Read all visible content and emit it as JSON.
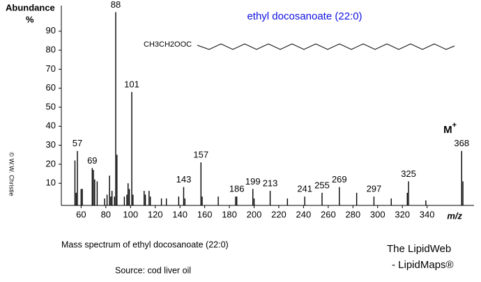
{
  "chart_data": {
    "type": "stick",
    "title": "ethyl docosanoate  (22:0)",
    "structure_label": "CH3CH2OOC",
    "y_label": "Abundance",
    "y_unit": "%",
    "x_label": "m/z",
    "molecular_ion": {
      "text": "M",
      "sup": "+"
    },
    "copyright": "© W.W. Christie",
    "color": "#000000",
    "x": [
      55,
      56,
      57,
      60,
      61,
      69,
      70,
      71,
      73,
      79,
      81,
      83,
      84,
      85,
      87,
      88,
      89,
      95,
      97,
      98,
      99,
      101,
      102,
      111,
      112,
      115,
      116,
      125,
      129,
      139,
      143,
      144,
      157,
      158,
      171,
      185,
      186,
      199,
      200,
      213,
      227,
      241,
      255,
      269,
      283,
      297,
      311,
      324,
      325,
      339,
      368,
      369
    ],
    "values": [
      22,
      5,
      27,
      7,
      7,
      18,
      17,
      12,
      11,
      2,
      4,
      14,
      3,
      6,
      3,
      100,
      25,
      3,
      4,
      10,
      7,
      58,
      4,
      6,
      4,
      6,
      3,
      2,
      2,
      3,
      8,
      2,
      21,
      3,
      3,
      3,
      3,
      7,
      2,
      6,
      2,
      3,
      5,
      8,
      5,
      3,
      2,
      5,
      11,
      1,
      27,
      11
    ],
    "labeled": [
      false,
      false,
      true,
      false,
      false,
      true,
      false,
      false,
      false,
      false,
      false,
      false,
      false,
      false,
      false,
      true,
      false,
      false,
      false,
      false,
      false,
      true,
      false,
      false,
      false,
      false,
      false,
      false,
      false,
      false,
      true,
      false,
      true,
      false,
      false,
      false,
      true,
      true,
      false,
      true,
      false,
      true,
      true,
      true,
      false,
      true,
      false,
      false,
      true,
      false,
      true,
      false
    ],
    "xlim": [
      44,
      378
    ],
    "xticks": [
      60,
      80,
      100,
      120,
      140,
      160,
      180,
      200,
      220,
      240,
      260,
      280,
      300,
      320,
      340
    ],
    "ylim": [
      0,
      100
    ],
    "yticks": [
      10,
      20,
      30,
      40,
      50,
      60,
      70,
      80,
      90
    ]
  },
  "caption": "Mass spectrum of ethyl docosanoate (22:0)",
  "source": "Source:  cod liver oil",
  "brand": {
    "line1": "The LipidWeb",
    "line2": "- LipidMaps®"
  }
}
